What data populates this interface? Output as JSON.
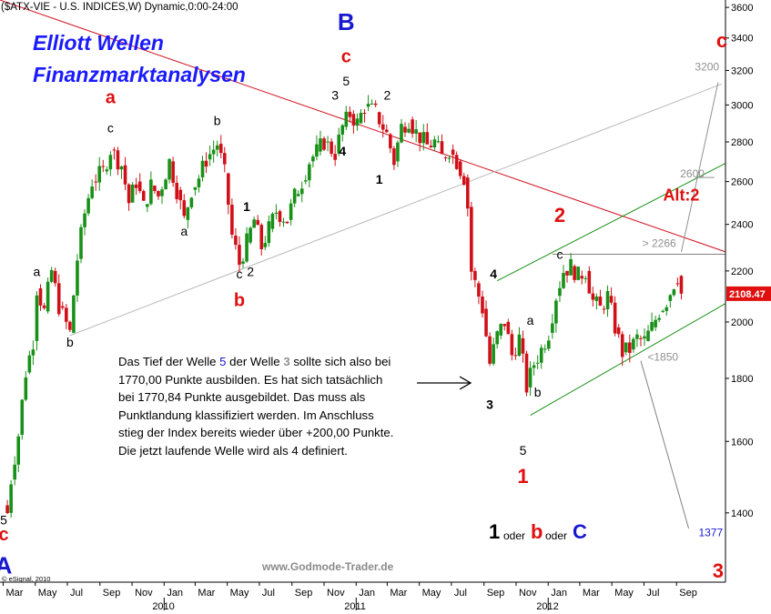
{
  "chart_data": {
    "type": "candlestick",
    "title": "($ATX-VIE - U.S. INDICES,W) Dynamic,0:00-24:00",
    "brand_title": [
      "Elliott Wellen",
      "Finanzmarktanalysen"
    ],
    "copyright": "© eSignal, 2010",
    "website": "www.Godmode-Trader.de",
    "y_axis": {
      "scale": "log",
      "range": [
        1230,
        3650
      ],
      "ticks": [
        1400,
        1600,
        1800,
        2000,
        2200,
        2400,
        2600,
        2800,
        3000,
        3200,
        3400,
        3600
      ],
      "labels": [
        "1400",
        "1600",
        "1800",
        "2000",
        "2200",
        "2400",
        "2600",
        "2800",
        "3000",
        "3200",
        "3400",
        "3600"
      ],
      "last_price": "2108.47"
    },
    "x_axis": {
      "range": [
        "2009-02-23",
        "2012-12-03"
      ],
      "ticks": [
        {
          "date": "2009-03-01",
          "label": "Mar"
        },
        {
          "date": "2009-05-01",
          "label": "May"
        },
        {
          "date": "2009-07-01",
          "label": "Jul"
        },
        {
          "date": "2009-09-01",
          "label": "Sep"
        },
        {
          "date": "2009-11-01",
          "label": "Nov"
        },
        {
          "date": "2010-01-01",
          "label": "Jan",
          "year": "2010"
        },
        {
          "date": "2010-03-01",
          "label": "Mar"
        },
        {
          "date": "2010-05-01",
          "label": "May"
        },
        {
          "date": "2010-07-01",
          "label": "Jul"
        },
        {
          "date": "2010-09-01",
          "label": "Sep"
        },
        {
          "date": "2010-11-01",
          "label": "Nov"
        },
        {
          "date": "2011-01-01",
          "label": "Jan",
          "year": "2011"
        },
        {
          "date": "2011-03-01",
          "label": "Mar"
        },
        {
          "date": "2011-05-01",
          "label": "May"
        },
        {
          "date": "2011-07-01",
          "label": "Jul"
        },
        {
          "date": "2011-09-01",
          "label": "Sep"
        },
        {
          "date": "2011-11-01",
          "label": "Nov"
        },
        {
          "date": "2012-01-01",
          "label": "Jan",
          "year": "2012"
        },
        {
          "date": "2012-03-01",
          "label": "Mar"
        },
        {
          "date": "2012-05-01",
          "label": "May"
        },
        {
          "date": "2012-07-01",
          "label": "Jul"
        },
        {
          "date": "2012-09-01",
          "label": "Sep"
        }
      ]
    },
    "price_path": [
      [
        "2009-03-02",
        1420
      ],
      [
        "2009-03-09",
        1400
      ],
      [
        "2009-03-16",
        1490
      ],
      [
        "2009-03-30",
        1620
      ],
      [
        "2009-04-13",
        1820
      ],
      [
        "2009-04-27",
        1930
      ],
      [
        "2009-05-04",
        2130
      ],
      [
        "2009-05-18",
        2040
      ],
      [
        "2009-06-01",
        2200
      ],
      [
        "2009-06-15",
        2060
      ],
      [
        "2009-07-06",
        1960
      ],
      [
        "2009-07-20",
        2250
      ],
      [
        "2009-08-03",
        2450
      ],
      [
        "2009-08-17",
        2600
      ],
      [
        "2009-09-07",
        2650
      ],
      [
        "2009-09-21",
        2760
      ],
      [
        "2009-10-12",
        2680
      ],
      [
        "2009-10-26",
        2500
      ],
      [
        "2009-11-09",
        2600
      ],
      [
        "2009-11-23",
        2480
      ],
      [
        "2009-12-07",
        2580
      ],
      [
        "2009-12-21",
        2530
      ],
      [
        "2010-01-11",
        2700
      ],
      [
        "2010-01-25",
        2560
      ],
      [
        "2010-02-08",
        2420
      ],
      [
        "2010-02-22",
        2560
      ],
      [
        "2010-03-08",
        2620
      ],
      [
        "2010-03-22",
        2710
      ],
      [
        "2010-04-12",
        2790
      ],
      [
        "2010-04-26",
        2640
      ],
      [
        "2010-05-10",
        2350
      ],
      [
        "2010-05-24",
        2230
      ],
      [
        "2010-06-07",
        2320
      ],
      [
        "2010-06-21",
        2420
      ],
      [
        "2010-07-05",
        2300
      ],
      [
        "2010-07-19",
        2380
      ],
      [
        "2010-08-02",
        2460
      ],
      [
        "2010-08-23",
        2420
      ],
      [
        "2010-09-06",
        2530
      ],
      [
        "2010-09-20",
        2600
      ],
      [
        "2010-10-04",
        2700
      ],
      [
        "2010-10-18",
        2750
      ],
      [
        "2010-11-01",
        2800
      ],
      [
        "2010-11-22",
        2740
      ],
      [
        "2010-12-06",
        2880
      ],
      [
        "2010-12-20",
        2950
      ],
      [
        "2011-01-03",
        2900
      ],
      [
        "2011-01-17",
        2990
      ],
      [
        "2011-02-07",
        2960
      ],
      [
        "2011-02-28",
        2840
      ],
      [
        "2011-03-14",
        2700
      ],
      [
        "2011-03-28",
        2880
      ],
      [
        "2011-04-11",
        2920
      ],
      [
        "2011-04-25",
        2850
      ],
      [
        "2011-05-16",
        2780
      ],
      [
        "2011-05-30",
        2800
      ],
      [
        "2011-06-13",
        2720
      ],
      [
        "2011-06-27",
        2760
      ],
      [
        "2011-07-11",
        2700
      ],
      [
        "2011-07-25",
        2620
      ],
      [
        "2011-08-01",
        2480
      ],
      [
        "2011-08-08",
        2200
      ],
      [
        "2011-08-15",
        2150
      ],
      [
        "2011-08-29",
        2050
      ],
      [
        "2011-09-12",
        1850
      ],
      [
        "2011-09-26",
        1950
      ],
      [
        "2011-10-10",
        2000
      ],
      [
        "2011-10-24",
        1880
      ],
      [
        "2011-11-07",
        1940
      ],
      [
        "2011-11-21",
        1770
      ],
      [
        "2011-12-05",
        1850
      ],
      [
        "2011-12-19",
        1900
      ],
      [
        "2012-01-02",
        1960
      ],
      [
        "2012-01-16",
        2100
      ],
      [
        "2012-01-30",
        2200
      ],
      [
        "2012-02-13",
        2220
      ],
      [
        "2012-02-27",
        2180
      ],
      [
        "2012-03-12",
        2200
      ],
      [
        "2012-03-26",
        2080
      ],
      [
        "2012-04-09",
        2050
      ],
      [
        "2012-04-23",
        2100
      ],
      [
        "2012-05-07",
        1980
      ],
      [
        "2012-05-21",
        1890
      ],
      [
        "2012-06-04",
        1900
      ],
      [
        "2012-06-18",
        1940
      ],
      [
        "2012-07-02",
        1930
      ],
      [
        "2012-07-16",
        1980
      ],
      [
        "2012-07-30",
        2040
      ],
      [
        "2012-08-13",
        2080
      ],
      [
        "2012-08-27",
        2150
      ],
      [
        "2012-09-03",
        2180
      ],
      [
        "2012-09-10",
        2108
      ]
    ],
    "lines": [
      {
        "name": "red-downtrend-line",
        "color": "#d01020",
        "from": [
          "2009-02-23",
          3650
        ],
        "to": [
          "2012-12-03",
          2280
        ]
      },
      {
        "name": "gray-long-trendline",
        "color": "#b8b8b8",
        "from": [
          "2009-07-06",
          1950
        ],
        "to": [
          "2012-11-26",
          3120
        ]
      },
      {
        "name": "green-channel-upper",
        "color": "#189018",
        "from": [
          "2011-09-26",
          2160
        ],
        "to": [
          "2012-12-03",
          2690
        ]
      },
      {
        "name": "green-channel-lower",
        "color": "#189018",
        "from": [
          "2011-11-28",
          1680
        ],
        "to": [
          "2012-12-03",
          2070
        ]
      },
      {
        "name": "gray-2266-level",
        "color": "#808080",
        "from": [
          "2012-01-09",
          2270
        ],
        "to": [
          "2012-12-03",
          2270
        ]
      },
      {
        "name": "gray-1850-line",
        "color": "#808080",
        "from": [
          "2012-06-25",
          1860
        ],
        "to": [
          "2012-09-24",
          1360
        ]
      },
      {
        "name": "gray-to-3200",
        "color": "#909090",
        "from": [
          "2012-09-10",
          2280
        ],
        "to": [
          "2012-11-19",
          3130
        ]
      },
      {
        "name": "gray-2600-tick",
        "color": "#909090",
        "from": [
          "2012-10-08",
          2620
        ],
        "to": [
          "2012-11-12",
          2620
        ]
      }
    ],
    "annotations": [
      {
        "text": "A",
        "color": "#1818d0",
        "bold": true,
        "size": 26,
        "at": [
          "2009-03-02",
          1250
        ]
      },
      {
        "text": "c",
        "color": "#e01010",
        "bold": true,
        "size": 20,
        "at": [
          "2009-03-02",
          1330
        ]
      },
      {
        "text": "5",
        "color": "#000000",
        "bold": false,
        "size": 14,
        "at": [
          "2009-03-02",
          1370
        ]
      },
      {
        "text": "a",
        "color": "#000000",
        "bold": false,
        "size": 14,
        "at": [
          "2009-05-04",
          2180
        ]
      },
      {
        "text": "b",
        "color": "#000000",
        "bold": false,
        "size": 14,
        "at": [
          "2009-07-06",
          1910
        ]
      },
      {
        "text": "a",
        "color": "#e01010",
        "bold": true,
        "size": 20,
        "at": [
          "2009-09-21",
          3010
        ]
      },
      {
        "text": "c",
        "color": "#000000",
        "bold": false,
        "size": 14,
        "at": [
          "2009-09-21",
          2850
        ]
      },
      {
        "text": "a",
        "color": "#000000",
        "bold": false,
        "size": 14,
        "at": [
          "2010-02-08",
          2350
        ]
      },
      {
        "text": "b",
        "color": "#000000",
        "bold": false,
        "size": 14,
        "at": [
          "2010-04-12",
          2890
        ]
      },
      {
        "text": "1",
        "color": "#000000",
        "bold": true,
        "size": 14,
        "at": [
          "2010-06-07",
          2460
        ]
      },
      {
        "text": "c",
        "color": "#000000",
        "bold": false,
        "size": 14,
        "at": [
          "2010-05-24",
          2170
        ]
      },
      {
        "text": "2",
        "color": "#000000",
        "bold": false,
        "size": 14,
        "at": [
          "2010-06-14",
          2180
        ]
      },
      {
        "text": "b",
        "color": "#e01010",
        "bold": true,
        "size": 20,
        "at": [
          "2010-05-24",
          2060
        ]
      },
      {
        "text": "B",
        "color": "#1818d0",
        "bold": true,
        "size": 26,
        "at": [
          "2010-12-13",
          3450
        ]
      },
      {
        "text": "c",
        "color": "#e01010",
        "bold": true,
        "size": 20,
        "at": [
          "2010-12-13",
          3250
        ]
      },
      {
        "text": "3",
        "color": "#000000",
        "bold": false,
        "size": 14,
        "at": [
          "2010-11-22",
          3030
        ]
      },
      {
        "text": "5",
        "color": "#000000",
        "bold": false,
        "size": 14,
        "at": [
          "2010-12-13",
          3110
        ]
      },
      {
        "text": "4",
        "color": "#000000",
        "bold": true,
        "size": 14,
        "at": [
          "2010-12-06",
          2730
        ]
      },
      {
        "text": "2",
        "color": "#000000",
        "bold": false,
        "size": 14,
        "at": [
          "2011-03-01",
          3030
        ]
      },
      {
        "text": "1",
        "color": "#000000",
        "bold": true,
        "size": 14,
        "at": [
          "2011-02-14",
          2590
        ]
      },
      {
        "text": "4",
        "color": "#000000",
        "bold": true,
        "size": 14,
        "at": [
          "2011-09-19",
          2170
        ]
      },
      {
        "text": "3",
        "color": "#000000",
        "bold": true,
        "size": 14,
        "at": [
          "2011-09-12",
          1700
        ]
      },
      {
        "text": "a",
        "color": "#000000",
        "bold": false,
        "size": 14,
        "at": [
          "2011-11-28",
          1990
        ]
      },
      {
        "text": "b",
        "color": "#000000",
        "bold": false,
        "size": 14,
        "at": [
          "2011-12-12",
          1740
        ]
      },
      {
        "text": "5",
        "color": "#000000",
        "bold": false,
        "size": 14,
        "at": [
          "2011-11-14",
          1560
        ]
      },
      {
        "text": "1",
        "color": "#e01010",
        "bold": true,
        "size": 22,
        "at": [
          "2011-11-14",
          1480
        ]
      },
      {
        "text": "2",
        "color": "#e01010",
        "bold": true,
        "size": 22,
        "at": [
          "2012-01-23",
          2410
        ]
      },
      {
        "text": "c",
        "color": "#000000",
        "bold": false,
        "size": 14,
        "at": [
          "2012-01-23",
          2250
        ]
      },
      {
        "text": "Alt:2",
        "color": "#e01010",
        "bold": true,
        "size": 18,
        "at": [
          "2012-09-10",
          2510
        ]
      },
      {
        "text": "c",
        "color": "#e01010",
        "bold": true,
        "size": 22,
        "at": [
          "2012-11-26",
          3340
        ]
      },
      {
        "text": "3",
        "color": "#e01010",
        "bold": true,
        "size": 22,
        "at": [
          "2012-11-19",
          1240
        ]
      },
      {
        "text": "1377",
        "color": "#1818d0",
        "bold": false,
        "size": 12,
        "at": [
          "2012-11-05",
          1340
        ]
      },
      {
        "text": "3200",
        "color": "#909090",
        "bold": false,
        "size": 12,
        "at": [
          "2012-10-29",
          3200
        ]
      },
      {
        "text": "2600",
        "color": "#909090",
        "bold": false,
        "size": 12,
        "at": [
          "2012-10-01",
          2620
        ]
      },
      {
        "text": "> 2266",
        "color": "#909090",
        "bold": false,
        "size": 12,
        "at": [
          "2012-07-30",
          2300
        ]
      },
      {
        "text": "<1850",
        "color": "#909090",
        "bold": false,
        "size": 12,
        "at": [
          "2012-08-06",
          1860
        ]
      }
    ],
    "bottom_label": {
      "parts": [
        {
          "text": "1",
          "color": "#000000",
          "size": 22
        },
        {
          "text": "oder",
          "color": "#000000",
          "size": 12
        },
        {
          "text": "b",
          "color": "#e01010",
          "size": 22
        },
        {
          "text": "oder",
          "color": "#000000",
          "size": 12
        },
        {
          "text": "C",
          "color": "#1818d0",
          "size": 22
        }
      ]
    },
    "arrow": {
      "label": "",
      "from_text_box": true
    }
  },
  "commentary": {
    "line1_a": "Das Tief der Welle ",
    "line1_n1": "5",
    "line1_b": " der Welle ",
    "line1_n2": "3",
    "line1_c": " sollte sich",
    "rest": "also bei 1770,00 Punkte ausbilden. Es hat sich tatsächlich bei 1770,84 Punkte ausgebildet. Das muss als Punktlandung klassifiziert werden. Im Anschluss stieg der Index bereits wieder über +200,00 Punkte. Die jetzt laufende Welle wird als 4 definiert."
  },
  "colors": {
    "up_candle": "#189018",
    "down_candle": "#d01018",
    "price_tag": "#e01010",
    "axis_text": "#000000"
  }
}
